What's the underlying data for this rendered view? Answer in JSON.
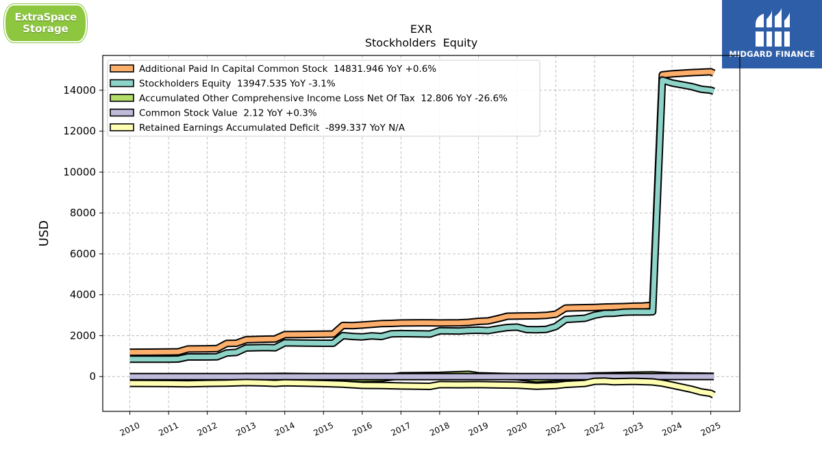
{
  "logos": {
    "left": {
      "line1": "ExtraSpace",
      "line2": "Storage"
    },
    "right": {
      "text": "MIDGARD FINANCE"
    }
  },
  "chart_data": {
    "type": "area",
    "title": "EXR",
    "subtitle": "Stockholders  Equity",
    "xlabel": "",
    "ylabel": "USD",
    "xlim": [
      2009.3,
      2025.75
    ],
    "ylim": [
      -1700,
      15700
    ],
    "x_ticks": [
      2010,
      2011,
      2012,
      2013,
      2014,
      2015,
      2016,
      2017,
      2018,
      2019,
      2020,
      2021,
      2022,
      2023,
      2024,
      2025
    ],
    "x_tick_labels": [
      "2010",
      "2011",
      "2012",
      "2013",
      "2014",
      "2015",
      "2016",
      "2017",
      "2018",
      "2019",
      "2020",
      "2021",
      "2022",
      "2023",
      "2024",
      "2025"
    ],
    "y_ticks": [
      0,
      2000,
      4000,
      6000,
      8000,
      10000,
      12000,
      14000
    ],
    "y_tick_labels": [
      "0",
      "2000",
      "4000",
      "6000",
      "8000",
      "10000",
      "12000",
      "14000"
    ],
    "grid": true,
    "legend_position": "top-left",
    "series": [
      {
        "name": "Additional Paid In Capital Common Stock",
        "legend": "Additional Paid In Capital Common Stock  14831.946 YoY +0.6%",
        "color": "#fdae6b",
        "points": [
          [
            2010,
            1190
          ],
          [
            2010.5,
            1195
          ],
          [
            2011,
            1200
          ],
          [
            2011.25,
            1210
          ],
          [
            2011.5,
            1350
          ],
          [
            2012,
            1360
          ],
          [
            2012.25,
            1370
          ],
          [
            2012.5,
            1620
          ],
          [
            2012.75,
            1630
          ],
          [
            2013,
            1800
          ],
          [
            2013.5,
            1830
          ],
          [
            2013.75,
            1840
          ],
          [
            2014,
            2050
          ],
          [
            2014.5,
            2060
          ],
          [
            2015,
            2070
          ],
          [
            2015.25,
            2080
          ],
          [
            2015.5,
            2500
          ],
          [
            2015.75,
            2490
          ],
          [
            2016,
            2520
          ],
          [
            2016.5,
            2590
          ],
          [
            2016.75,
            2600
          ],
          [
            2017,
            2620
          ],
          [
            2017.5,
            2630
          ],
          [
            2017.75,
            2630
          ],
          [
            2018,
            2620
          ],
          [
            2018.5,
            2630
          ],
          [
            2018.75,
            2650
          ],
          [
            2019,
            2700
          ],
          [
            2019.25,
            2720
          ],
          [
            2019.5,
            2830
          ],
          [
            2019.75,
            2950
          ],
          [
            2020,
            2960
          ],
          [
            2020.5,
            2970
          ],
          [
            2020.75,
            2990
          ],
          [
            2021,
            3050
          ],
          [
            2021.25,
            3350
          ],
          [
            2021.5,
            3360
          ],
          [
            2021.75,
            3370
          ],
          [
            2022,
            3380
          ],
          [
            2022.25,
            3400
          ],
          [
            2022.5,
            3410
          ],
          [
            2022.75,
            3420
          ],
          [
            2023,
            3440
          ],
          [
            2023.25,
            3450
          ],
          [
            2023.4,
            3470
          ],
          [
            2023.5,
            3480
          ],
          [
            2023.75,
            14750
          ],
          [
            2024,
            14800
          ],
          [
            2024.5,
            14860
          ],
          [
            2024.75,
            14880
          ],
          [
            2025,
            14900
          ],
          [
            2025.08,
            14832
          ]
        ]
      },
      {
        "name": "Stockholders Equity",
        "legend": "Stockholders Equity  13947.535 YoY -3.1%",
        "color": "#8dd3c7",
        "points": [
          [
            2010,
            850
          ],
          [
            2010.5,
            850
          ],
          [
            2011,
            850
          ],
          [
            2011.25,
            860
          ],
          [
            2011.5,
            960
          ],
          [
            2012,
            960
          ],
          [
            2012.25,
            970
          ],
          [
            2012.5,
            1150
          ],
          [
            2012.75,
            1180
          ],
          [
            2013,
            1400
          ],
          [
            2013.5,
            1420
          ],
          [
            2013.75,
            1410
          ],
          [
            2014,
            1650
          ],
          [
            2014.5,
            1640
          ],
          [
            2015,
            1630
          ],
          [
            2015.25,
            1630
          ],
          [
            2015.5,
            2000
          ],
          [
            2015.75,
            1960
          ],
          [
            2016,
            1940
          ],
          [
            2016.25,
            1990
          ],
          [
            2016.5,
            1960
          ],
          [
            2016.75,
            2090
          ],
          [
            2017,
            2100
          ],
          [
            2017.5,
            2090
          ],
          [
            2017.75,
            2080
          ],
          [
            2018,
            2240
          ],
          [
            2018.5,
            2230
          ],
          [
            2018.75,
            2260
          ],
          [
            2019,
            2270
          ],
          [
            2019.25,
            2250
          ],
          [
            2019.5,
            2330
          ],
          [
            2019.75,
            2400
          ],
          [
            2020,
            2420
          ],
          [
            2020.25,
            2300
          ],
          [
            2020.5,
            2290
          ],
          [
            2020.75,
            2310
          ],
          [
            2021,
            2450
          ],
          [
            2021.25,
            2790
          ],
          [
            2021.5,
            2820
          ],
          [
            2021.75,
            2850
          ],
          [
            2022,
            3000
          ],
          [
            2022.25,
            3090
          ],
          [
            2022.5,
            3100
          ],
          [
            2022.75,
            3150
          ],
          [
            2023,
            3160
          ],
          [
            2023.25,
            3160
          ],
          [
            2023.4,
            3160
          ],
          [
            2023.5,
            3170
          ],
          [
            2023.75,
            14500
          ],
          [
            2024,
            14350
          ],
          [
            2024.5,
            14180
          ],
          [
            2024.75,
            14050
          ],
          [
            2025,
            14000
          ],
          [
            2025.08,
            13948
          ]
        ]
      },
      {
        "name": "Accumulated Other Comprehensive Income Loss Net Of Tax",
        "legend": "Accumulated Other Comprehensive Income Loss Net Of Tax  12.806 YoY -26.6%",
        "color": "#b3de69",
        "points": [
          [
            2010,
            -80
          ],
          [
            2011,
            -60
          ],
          [
            2012,
            -40
          ],
          [
            2013,
            0
          ],
          [
            2014,
            10
          ],
          [
            2015,
            -20
          ],
          [
            2016,
            -100
          ],
          [
            2016.5,
            -80
          ],
          [
            2017,
            40
          ],
          [
            2018,
            60
          ],
          [
            2018.75,
            110
          ],
          [
            2019,
            40
          ],
          [
            2020,
            -10
          ],
          [
            2020.5,
            -120
          ],
          [
            2021,
            -60
          ],
          [
            2022,
            30
          ],
          [
            2023,
            70
          ],
          [
            2023.5,
            80
          ],
          [
            2024,
            40
          ],
          [
            2025,
            17
          ],
          [
            2025.08,
            13
          ]
        ]
      },
      {
        "name": "Common Stock Value",
        "legend": "Common Stock Value  2.12 YoY +0.3%",
        "color": "#bebada",
        "points": [
          [
            2010,
            1
          ],
          [
            2012,
            1
          ],
          [
            2014,
            1
          ],
          [
            2016,
            1.2
          ],
          [
            2018,
            1.3
          ],
          [
            2020,
            1.3
          ],
          [
            2022,
            1.3
          ],
          [
            2023.5,
            1.3
          ],
          [
            2023.75,
            2.1
          ],
          [
            2025,
            2.1
          ],
          [
            2025.08,
            2.12
          ]
        ]
      },
      {
        "name": "Retained Earnings Accumulated Deficit",
        "legend": "Retained Earnings Accumulated Deficit  -899.337 YoY N/A",
        "color": "#ffffb3",
        "points": [
          [
            2010,
            -330
          ],
          [
            2011,
            -340
          ],
          [
            2011.5,
            -350
          ],
          [
            2012,
            -330
          ],
          [
            2012.5,
            -320
          ],
          [
            2013,
            -290
          ],
          [
            2013.5,
            -310
          ],
          [
            2013.75,
            -330
          ],
          [
            2014,
            -300
          ],
          [
            2014.5,
            -320
          ],
          [
            2015,
            -340
          ],
          [
            2015.5,
            -370
          ],
          [
            2016,
            -430
          ],
          [
            2016.5,
            -440
          ],
          [
            2017,
            -460
          ],
          [
            2017.75,
            -480
          ],
          [
            2018,
            -390
          ],
          [
            2018.5,
            -400
          ],
          [
            2019,
            -390
          ],
          [
            2019.5,
            -410
          ],
          [
            2020,
            -420
          ],
          [
            2020.5,
            -470
          ],
          [
            2021,
            -440
          ],
          [
            2021.25,
            -380
          ],
          [
            2021.75,
            -330
          ],
          [
            2022,
            -230
          ],
          [
            2022.25,
            -220
          ],
          [
            2022.5,
            -250
          ],
          [
            2023,
            -230
          ],
          [
            2023.5,
            -260
          ],
          [
            2023.75,
            -320
          ],
          [
            2024,
            -420
          ],
          [
            2024.5,
            -620
          ],
          [
            2024.75,
            -750
          ],
          [
            2025,
            -820
          ],
          [
            2025.08,
            -899
          ]
        ]
      }
    ],
    "draw_order": [
      "Additional Paid In Capital Common Stock",
      "Stockholders Equity",
      "Accumulated Other Comprehensive Income Loss Net Of Tax",
      "Common Stock Value",
      "Retained Earnings Accumulated Deficit"
    ]
  }
}
